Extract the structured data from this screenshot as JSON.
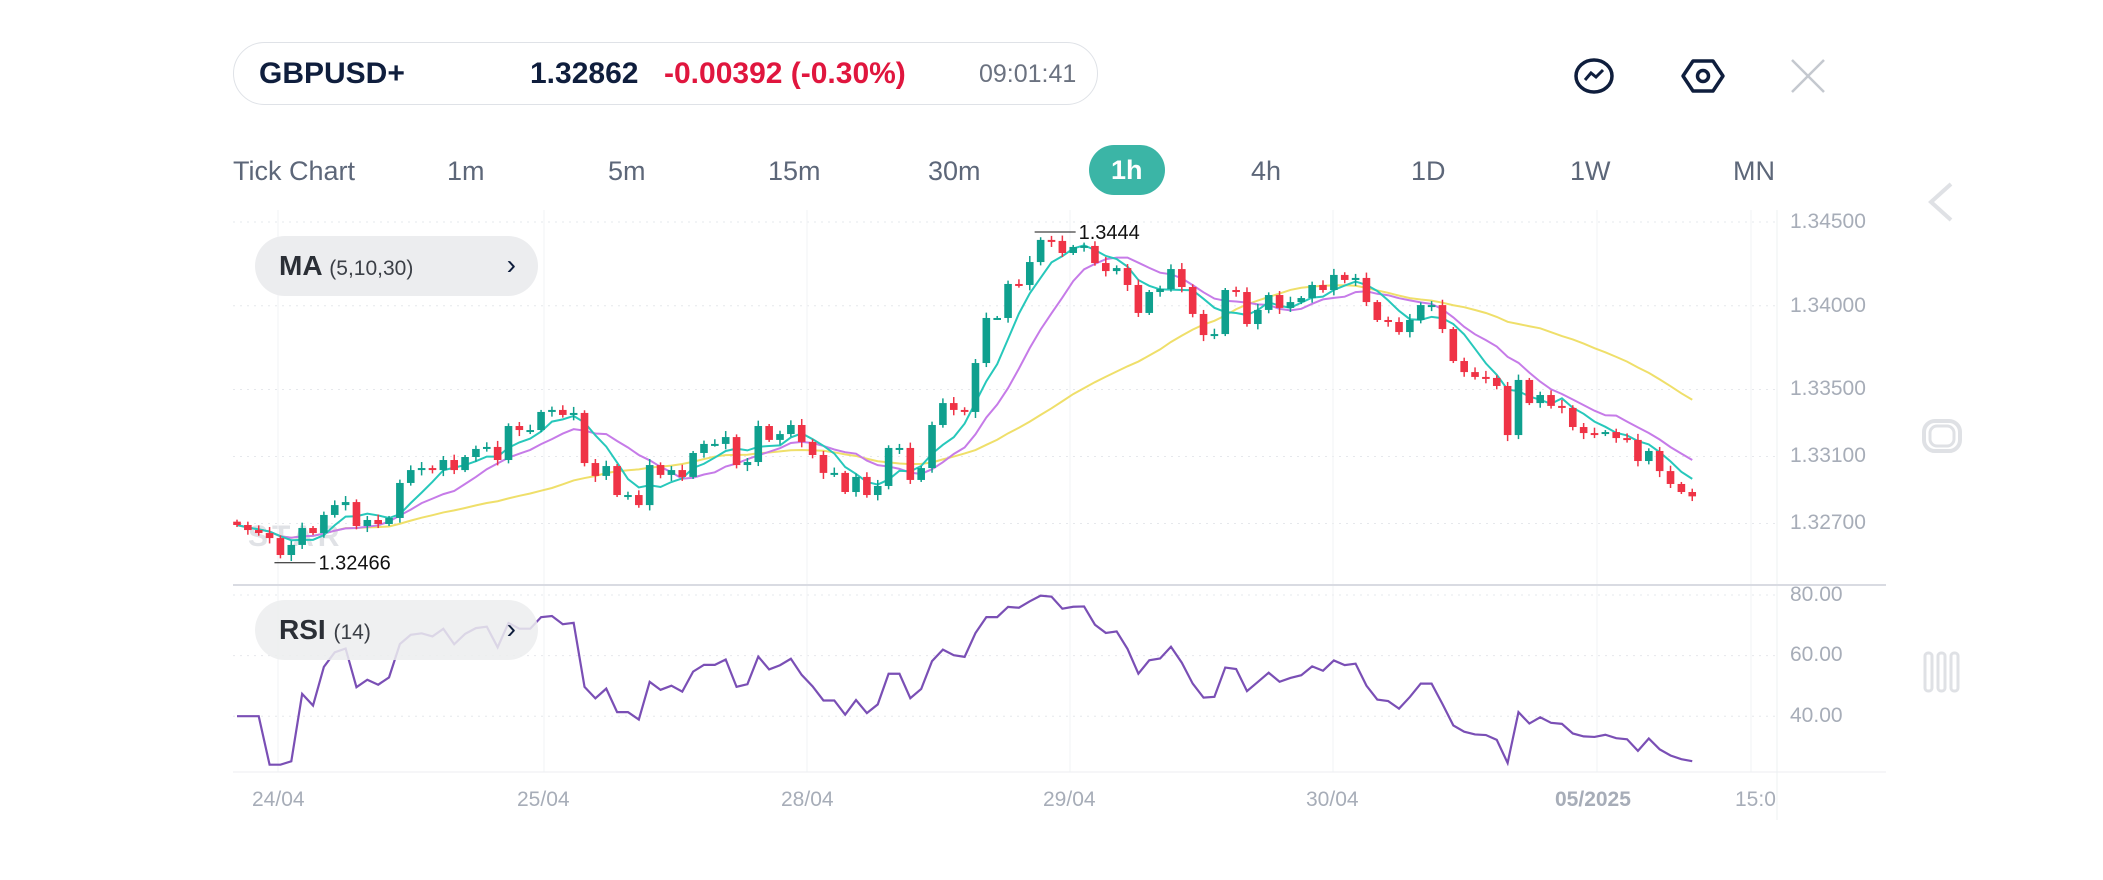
{
  "header": {
    "symbol": "GBPUSD+",
    "price": "1.32862",
    "change": "-0.00392 (-0.30%)",
    "time": "09:01:41",
    "icons": [
      "chart-line-icon",
      "settings-hexagon-icon",
      "close-icon"
    ]
  },
  "timeframes": {
    "items": [
      "Tick Chart",
      "1m",
      "5m",
      "15m",
      "30m",
      "1h",
      "4h",
      "1D",
      "1W",
      "MN"
    ],
    "active": "1h"
  },
  "indicators": {
    "ma": {
      "name": "MA",
      "params": "(5,10,30)"
    },
    "rsi": {
      "name": "RSI",
      "params": "(14)"
    }
  },
  "watermark": "STAR TRADER",
  "sidebar_icons": [
    "chevron-left-icon",
    "rounded-square-icon",
    "bars-icon"
  ],
  "chart_data": {
    "type": "candlestick",
    "timeframe": "1h",
    "price_axis": {
      "ticks": [
        "1.34500",
        "1.34000",
        "1.33500",
        "1.33100",
        "1.32700"
      ],
      "range": [
        1.3235,
        1.3459
      ]
    },
    "rsi_axis": {
      "ticks": [
        "80.00",
        "60.00",
        "40.00"
      ]
    },
    "date_ticks": [
      "24/04",
      "25/04",
      "28/04",
      "29/04",
      "30/04",
      "05/2025",
      "15:0"
    ],
    "annotations": {
      "high": "1.3444",
      "low": "1.32466"
    },
    "ma_periods": [
      5,
      10,
      30
    ],
    "rsi_period": 14,
    "colors": {
      "up": "#0fa08e",
      "down": "#ef3346",
      "ma5": "#27c8bb",
      "ma10": "#c67be8",
      "ma30": "#efdf6a",
      "rsi": "#7a4fb5"
    },
    "closes": [
      1.32691,
      1.32661,
      1.32643,
      1.32613,
      1.32512,
      1.32572,
      1.32673,
      1.32643,
      1.32751,
      1.3281,
      1.32828,
      1.32685,
      1.32721,
      1.32697,
      1.32733,
      1.32942,
      1.33019,
      1.33031,
      1.33019,
      1.33079,
      1.33019,
      1.33097,
      1.33145,
      1.33157,
      1.33079,
      1.33282,
      1.33258,
      1.33258,
      1.33366,
      1.33378,
      1.33348,
      1.3336,
      1.33061,
      1.32984,
      1.33043,
      1.3287,
      1.3287,
      1.3281,
      1.33049,
      1.3299,
      1.33019,
      1.32978,
      1.33121,
      1.33175,
      1.33175,
      1.33216,
      1.33049,
      1.33067,
      1.33282,
      1.33199,
      1.33234,
      1.33288,
      1.33187,
      1.33109,
      1.33002,
      1.33002,
      1.32888,
      1.32978,
      1.3287,
      1.32924,
      1.33151,
      1.33151,
      1.3296,
      1.33031,
      1.33288,
      1.33419,
      1.33378,
      1.33366,
      1.33658,
      1.33927,
      1.33927,
      1.3413,
      1.34124,
      1.34261,
      1.34393,
      1.34387,
      1.34315,
      1.34351,
      1.34357,
      1.34255,
      1.34207,
      1.34225,
      1.34124,
      1.33957,
      1.34082,
      1.341,
      1.34219,
      1.34112,
      1.33951,
      1.33825,
      1.33831,
      1.34094,
      1.34082,
      1.33891,
      1.33975,
      1.34064,
      1.33987,
      1.34022,
      1.34046,
      1.34124,
      1.34094,
      1.34184,
      1.34154,
      1.34166,
      1.34022,
      1.33915,
      1.33903,
      1.33843,
      1.33915,
      1.34004,
      1.34004,
      1.33861,
      1.3367,
      1.33604,
      1.33575,
      1.33569,
      1.33521,
      1.33228,
      1.33557,
      1.33419,
      1.33467,
      1.33402,
      1.3339,
      1.33276,
      1.3324,
      1.33234,
      1.33246,
      1.3321,
      1.33199,
      1.33073,
      1.33133,
      1.33013,
      1.32936,
      1.32888,
      1.32862
    ]
  }
}
